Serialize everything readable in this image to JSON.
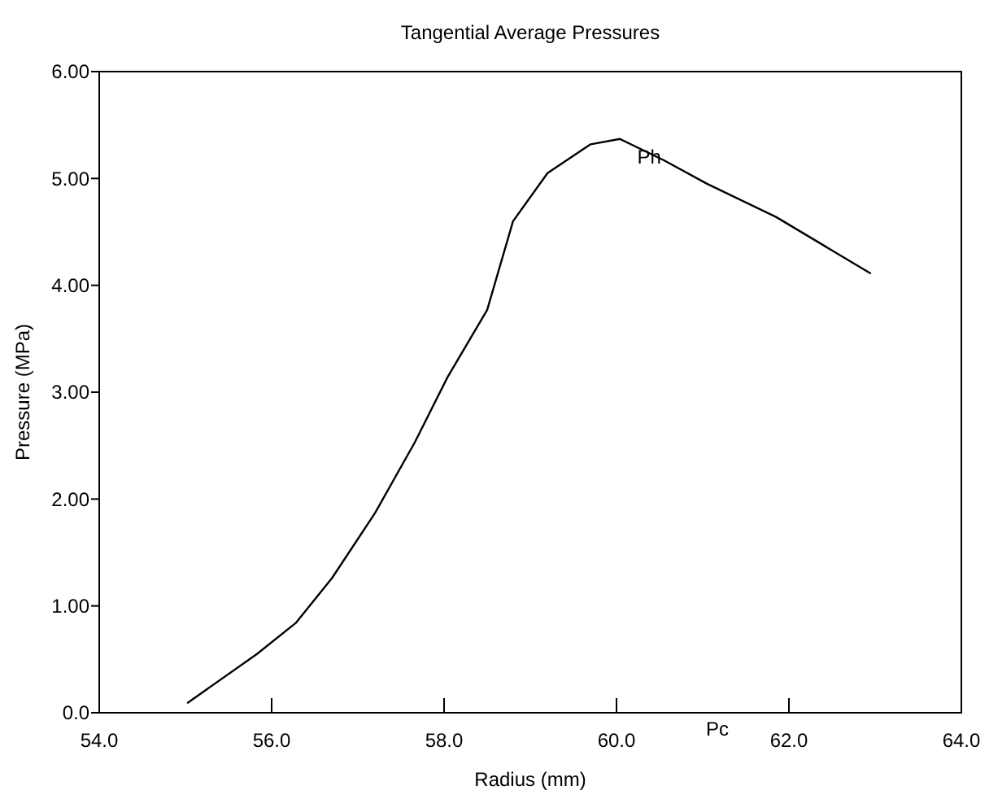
{
  "chart_data": {
    "type": "line",
    "title": "Tangential Average Pressures",
    "xlabel": "Radius (mm)",
    "ylabel": "Pressure (MPa)",
    "x": [
      55.02,
      55.83,
      56.28,
      56.7,
      57.2,
      57.66,
      58.04,
      58.5,
      58.8,
      59.2,
      59.7,
      60.04,
      60.55,
      61.05,
      61.85,
      62.95
    ],
    "series": [
      {
        "color": "#000000",
        "values": [
          0.09,
          0.55,
          0.84,
          1.26,
          1.87,
          2.53,
          3.14,
          3.77,
          4.6,
          5.05,
          5.32,
          5.37,
          5.17,
          4.95,
          4.64,
          4.11
        ]
      }
    ],
    "xlim": [
      54,
      64
    ],
    "xticks": [
      {
        "value": 54,
        "label": "54.0"
      },
      {
        "value": 56,
        "label": "56.0"
      },
      {
        "value": 58,
        "label": "58.0"
      },
      {
        "value": 60,
        "label": "60.0"
      },
      {
        "value": 62,
        "label": "62.0"
      },
      {
        "value": 64,
        "label": "64.0"
      }
    ],
    "ylim": [
      0,
      6
    ],
    "yticks": [
      {
        "value": 0,
        "label": "0.0"
      },
      {
        "value": 1,
        "label": "1.00"
      },
      {
        "value": 2,
        "label": "2.00"
      },
      {
        "value": 3,
        "label": "3.00"
      },
      {
        "value": 4,
        "label": "4.00"
      },
      {
        "value": 5,
        "label": "5.00"
      },
      {
        "value": 6,
        "label": "6.00"
      }
    ],
    "annotations": [
      {
        "text": "Ph",
        "x": 60.38,
        "y": 5.2
      },
      "Pc"
    ],
    "grid": false,
    "marker": "none",
    "line_style": "solid"
  }
}
